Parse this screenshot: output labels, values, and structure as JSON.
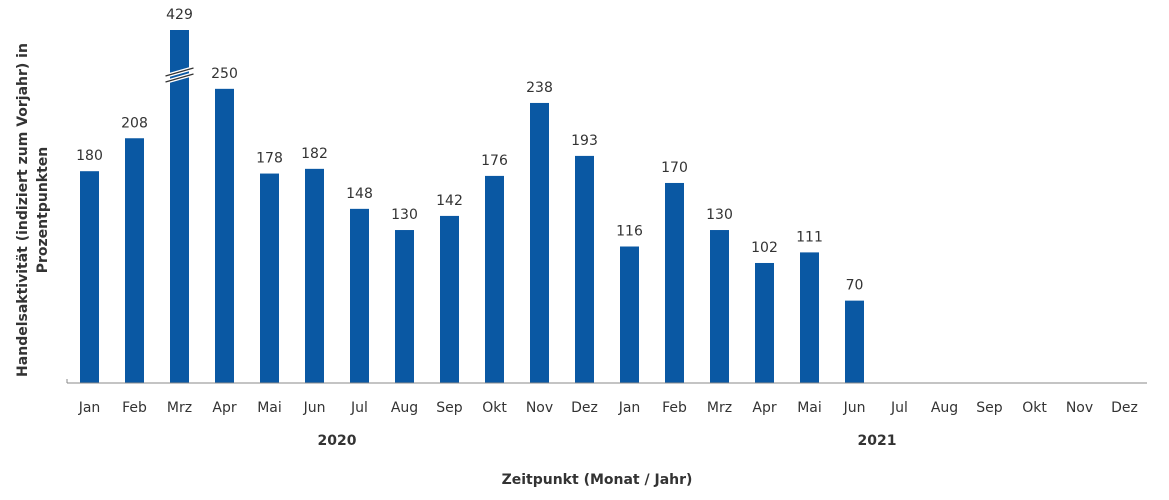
{
  "chart_data": {
    "type": "bar",
    "x_label": "Zeitpunkt (Monat / Jahr)",
    "y_label": [
      "Handelsaktivität (indiziert zum Vorjahr) in",
      "Prozentpunkten"
    ],
    "categories": [
      "Jan",
      "Feb",
      "Mrz",
      "Apr",
      "Mai",
      "Jun",
      "Jul",
      "Aug",
      "Sep",
      "Okt",
      "Nov",
      "Dez",
      "Jan",
      "Feb",
      "Mrz",
      "Apr",
      "Mai",
      "Jun",
      "Jul",
      "Aug",
      "Sep",
      "Okt",
      "Nov",
      "Dez"
    ],
    "groups": [
      "2020",
      "2021"
    ],
    "values": [
      180,
      208,
      429,
      250,
      178,
      182,
      148,
      130,
      142,
      176,
      238,
      193,
      116,
      170,
      130,
      102,
      111,
      70,
      null,
      null,
      null,
      null,
      null,
      null
    ],
    "color": "#0a58a3",
    "ylim": [
      0,
      300
    ],
    "axis_break": true
  }
}
